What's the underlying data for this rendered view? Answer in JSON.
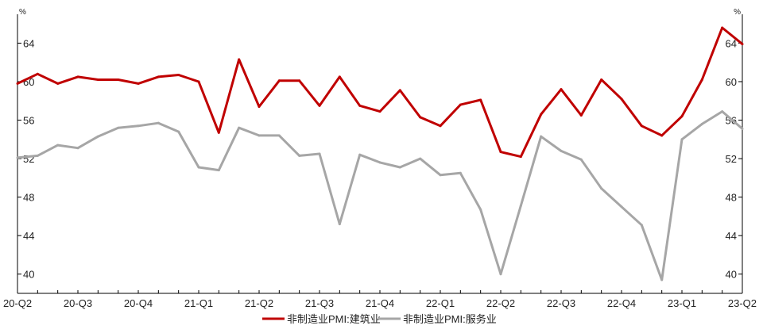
{
  "chart_data": {
    "type": "line",
    "x": [
      "20-Q2",
      "",
      "",
      "20-Q3",
      "",
      "",
      "20-Q4",
      "",
      "",
      "21-Q1",
      "",
      "",
      "21-Q2",
      "",
      "",
      "21-Q3",
      "",
      "",
      "21-Q4",
      "",
      "",
      "22-Q1",
      "",
      "",
      "22-Q2",
      "",
      "",
      "22-Q3",
      "",
      "",
      "22-Q4",
      "",
      "",
      "23-Q1",
      "",
      "",
      "23-Q2"
    ],
    "xtick_labels": [
      "20-Q2",
      "20-Q3",
      "20-Q4",
      "21-Q1",
      "21-Q2",
      "21-Q3",
      "21-Q4",
      "22-Q1",
      "22-Q2",
      "22-Q3",
      "22-Q4",
      "23-Q1",
      "23-Q2"
    ],
    "ylim": [
      38,
      67
    ],
    "yticks": [
      40,
      44,
      48,
      52,
      56,
      60,
      64
    ],
    "ylabel_left": "%",
    "ylabel_right": "%",
    "grid": false,
    "legend_position": "bottom",
    "series": [
      {
        "name": "非制造业PMI:建筑业",
        "color": "#c00000",
        "values": [
          59.8,
          60.8,
          59.8,
          60.5,
          60.2,
          60.2,
          59.8,
          60.5,
          60.7,
          60.0,
          54.7,
          62.3,
          57.4,
          60.1,
          60.1,
          57.5,
          60.5,
          57.5,
          56.9,
          59.1,
          56.3,
          55.4,
          57.6,
          58.1,
          52.7,
          52.2,
          56.6,
          59.2,
          56.5,
          60.2,
          58.2,
          55.4,
          54.4,
          56.4,
          60.2,
          65.6,
          63.9
        ]
      },
      {
        "name": "非制造业PMI:服务业",
        "color": "#a6a6a6",
        "values": [
          52.1,
          52.3,
          53.4,
          53.1,
          54.3,
          55.2,
          55.4,
          55.7,
          54.8,
          51.1,
          50.8,
          55.2,
          54.4,
          54.4,
          52.3,
          52.5,
          45.2,
          52.4,
          51.6,
          51.1,
          52.0,
          50.3,
          50.5,
          46.7,
          40.0,
          47.1,
          54.3,
          52.8,
          51.9,
          48.9,
          47.0,
          45.1,
          39.4,
          54.0,
          55.6,
          56.9,
          55.1
        ]
      }
    ]
  }
}
